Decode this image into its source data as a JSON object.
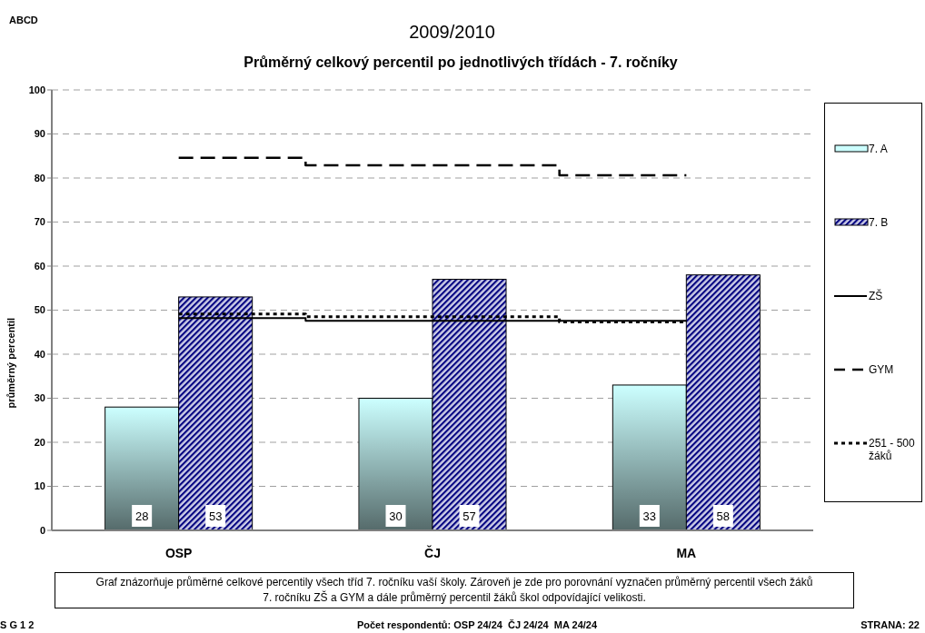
{
  "chart_data": {
    "type": "bar",
    "title": "2009/2010",
    "subtitle": "Průměrný celkový percentil po jednotlivých třídách - 7. ročníky",
    "ylabel": "průměrný percentil",
    "categories": [
      "OSP",
      "ČJ",
      "MA"
    ],
    "series": [
      {
        "name": "7. A",
        "color": "#ccffff",
        "values": [
          28,
          30,
          33
        ],
        "value_labels": [
          "28",
          "30",
          "33"
        ]
      },
      {
        "name": "7. B",
        "color": "#000080",
        "values": [
          53,
          57,
          58
        ],
        "value_labels": [
          "53",
          "57",
          "58"
        ]
      },
      {
        "name": "ZŠ",
        "type": "step",
        "color": "#000000",
        "line_style": "solid",
        "values": [
          48.2,
          47.6,
          47.6
        ]
      },
      {
        "name": "GYM",
        "type": "step",
        "color": "#000000",
        "line_style": "dashed",
        "values": [
          84.6,
          82.9,
          80.6
        ]
      },
      {
        "name": "251 - 500 žáků",
        "type": "step",
        "color": "#000000",
        "line_style": "dotted",
        "values": [
          49.1,
          48.5,
          47.3
        ]
      }
    ],
    "ylim": [
      0,
      100
    ],
    "yticks": [
      0,
      10,
      20,
      30,
      40,
      50,
      60,
      70,
      80,
      90,
      100
    ],
    "grid": "y",
    "legend": "right",
    "annotations": [
      "ABCD",
      "Graf znázorňuje průměrné celkové percentily všech tříd 7. ročníku vaší školy. Zároveň je zde pro porovnání vyznačen průměrný percentil všech žáků 7. ročníku ZŠ a GYM a dále průměrný percentil žáků škol odpovídající velikosti.",
      "S G 1 2",
      "Počet respondentů: OSP 24/24  ČJ 24/24  MA 24/24",
      "STRANA: 22"
    ]
  }
}
